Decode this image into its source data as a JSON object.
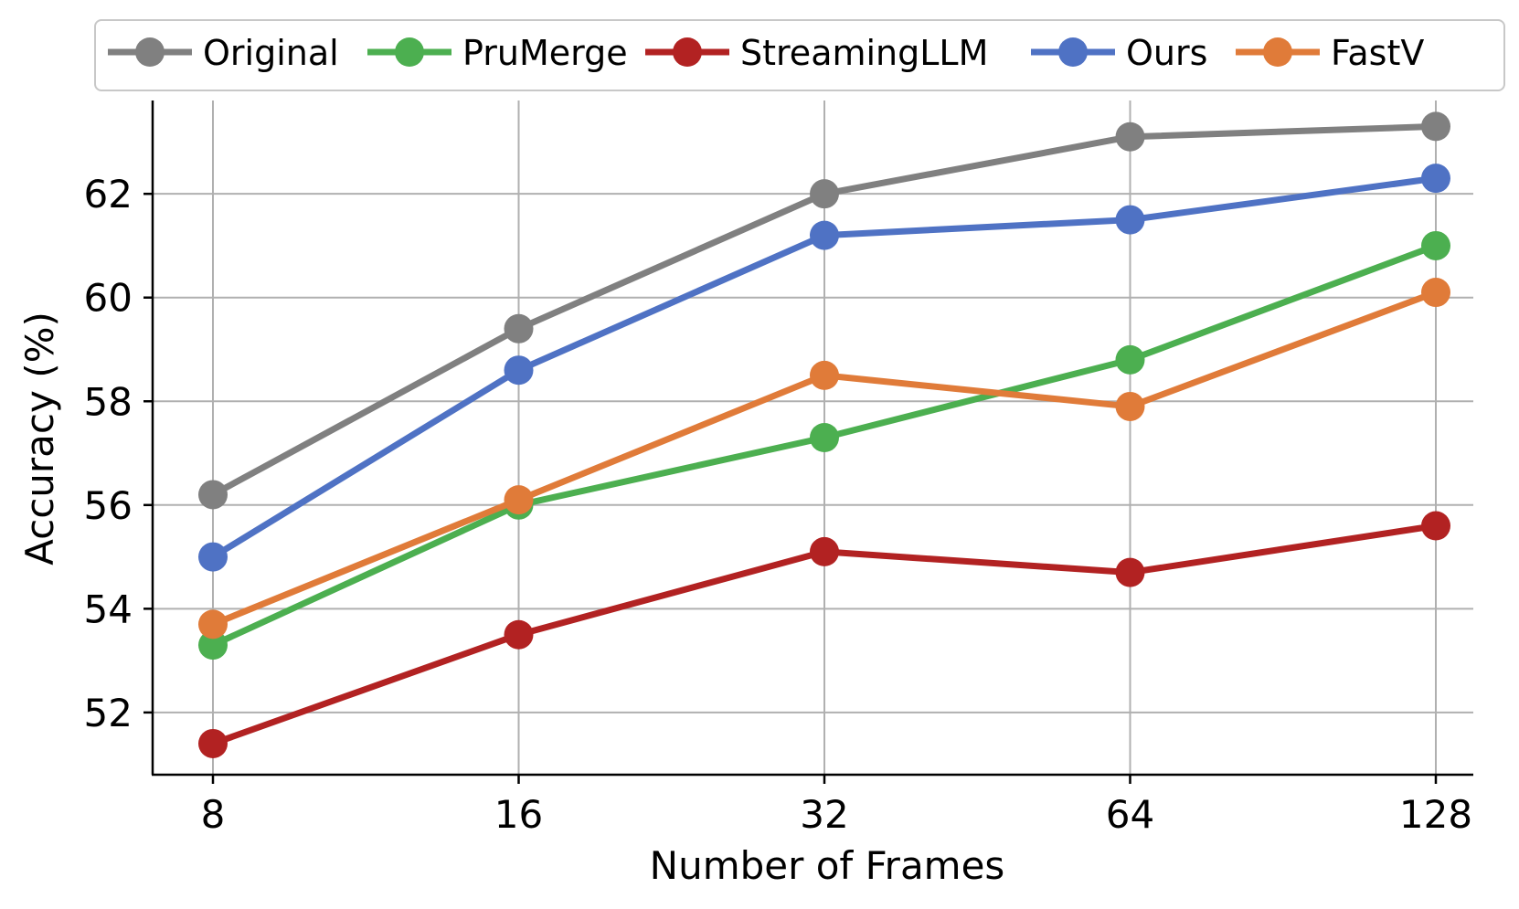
{
  "chart_data": {
    "type": "line",
    "title": "",
    "xlabel": "Number of Frames",
    "ylabel": "Accuracy (%)",
    "categories": [
      "8",
      "16",
      "32",
      "64",
      "128"
    ],
    "ylim": [
      50.8,
      63.8
    ],
    "yticks": [
      52,
      54,
      56,
      58,
      60,
      62
    ],
    "grid": true,
    "legend_position": "top",
    "series": [
      {
        "name": "Original",
        "color": "#808080",
        "values": [
          56.2,
          59.4,
          62.0,
          63.1,
          63.3
        ]
      },
      {
        "name": "PruMerge",
        "color": "#4caf50",
        "values": [
          53.3,
          56.0,
          57.3,
          58.8,
          61.0
        ]
      },
      {
        "name": "StreamingLLM",
        "color": "#b22222",
        "values": [
          51.4,
          53.5,
          55.1,
          54.7,
          55.6
        ]
      },
      {
        "name": "Ours",
        "color": "#4f72c4",
        "values": [
          55.0,
          58.6,
          61.2,
          61.5,
          62.3
        ]
      },
      {
        "name": "FastV",
        "color": "#e07b39",
        "values": [
          53.7,
          56.1,
          58.5,
          57.9,
          60.1
        ]
      }
    ]
  }
}
